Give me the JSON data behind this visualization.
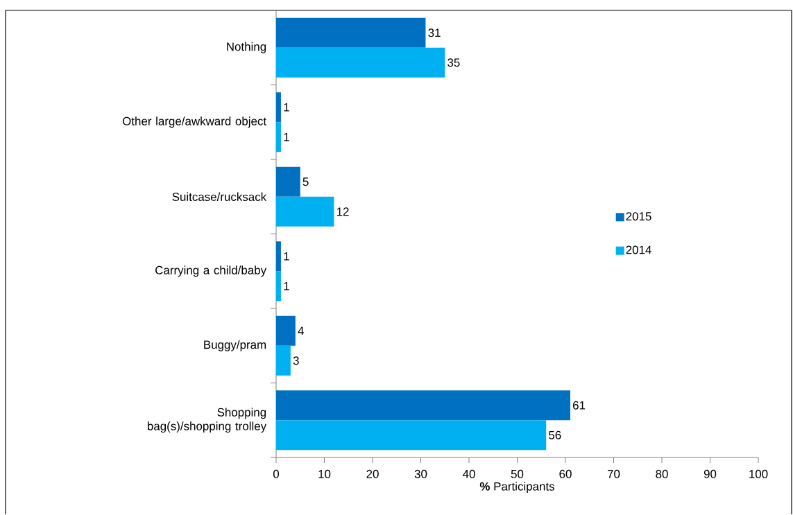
{
  "chart_data": {
    "type": "bar",
    "orientation": "horizontal",
    "xlabel": "**%** Participants",
    "categories": [
      "Nothing",
      "Other large/awkward object",
      "Suitcase/rucksack",
      "Carrying a child/baby",
      "Buggy/pram",
      "Shopping bag(s)/shopping trolley"
    ],
    "series": [
      {
        "name": "2015",
        "color": "#0070c0",
        "values": [
          31,
          1,
          5,
          1,
          4,
          61
        ]
      },
      {
        "name": "2014",
        "color": "#00b0f0",
        "values": [
          35,
          1,
          12,
          1,
          3,
          56
        ]
      }
    ],
    "xlim": [
      0,
      100
    ],
    "xticks": [
      0,
      10,
      20,
      30,
      40,
      50,
      60,
      70,
      80,
      90,
      100
    ],
    "data_labels": true,
    "legend": "right"
  }
}
